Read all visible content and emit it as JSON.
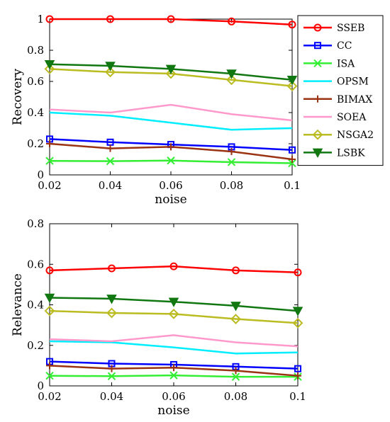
{
  "chart_data": [
    {
      "type": "line",
      "xlabel": "noise",
      "ylabel": "Recovery",
      "x": [
        0.02,
        0.04,
        0.06,
        0.08,
        0.1
      ],
      "x_tick_labels": [
        "0.02",
        "0.04",
        "0.06",
        "0.08",
        "0.1"
      ],
      "xlim": [
        0.02,
        0.1
      ],
      "ylim": [
        0,
        1
      ],
      "y_ticks": [
        0,
        0.2,
        0.4,
        0.6,
        0.8,
        1
      ],
      "y_tick_labels": [
        "0",
        "0.2",
        "0.4",
        "0.6",
        "0.8",
        "1"
      ],
      "grid": false,
      "legend": "outside-right",
      "series": [
        {
          "name": "SSEB",
          "color": "#ff0000",
          "marker": "circle",
          "values": [
            1.0,
            1.0,
            1.0,
            0.985,
            0.965
          ]
        },
        {
          "name": "CC",
          "color": "#0000ff",
          "marker": "square",
          "values": [
            0.23,
            0.21,
            0.195,
            0.18,
            0.16
          ]
        },
        {
          "name": "ISA",
          "color": "#33ee33",
          "marker": "x",
          "values": [
            0.09,
            0.088,
            0.092,
            0.082,
            0.075
          ]
        },
        {
          "name": "OPSM",
          "color": "#00eeff",
          "marker": "none",
          "values": [
            0.4,
            0.38,
            0.335,
            0.29,
            0.3
          ]
        },
        {
          "name": "BIMAX",
          "color": "#993311",
          "marker": "plus",
          "values": [
            0.2,
            0.17,
            0.18,
            0.15,
            0.1
          ]
        },
        {
          "name": "SOEA",
          "color": "#ff99cc",
          "marker": "none",
          "values": [
            0.42,
            0.4,
            0.45,
            0.39,
            0.35
          ]
        },
        {
          "name": "NSGA2",
          "color": "#bbbb22",
          "marker": "diamond",
          "values": [
            0.68,
            0.66,
            0.65,
            0.61,
            0.57
          ]
        },
        {
          "name": "LSBK",
          "color": "#117711",
          "marker": "triangle",
          "values": [
            0.71,
            0.7,
            0.68,
            0.65,
            0.61
          ]
        }
      ]
    },
    {
      "type": "line",
      "xlabel": "noise",
      "ylabel": "Relevance",
      "x": [
        0.02,
        0.04,
        0.06,
        0.08,
        0.1
      ],
      "x_tick_labels": [
        "0.02",
        "0.04",
        "0.06",
        "0.08",
        "0.1"
      ],
      "xlim": [
        0.02,
        0.1
      ],
      "ylim": [
        0,
        0.8
      ],
      "y_ticks": [
        0,
        0.2,
        0.4,
        0.6,
        0.8
      ],
      "y_tick_labels": [
        "0",
        "0.2",
        "0.4",
        "0.6",
        "0.8"
      ],
      "grid": false,
      "series": [
        {
          "name": "SSEB",
          "color": "#ff0000",
          "marker": "circle",
          "values": [
            0.57,
            0.58,
            0.59,
            0.57,
            0.56
          ]
        },
        {
          "name": "CC",
          "color": "#0000ff",
          "marker": "square",
          "values": [
            0.12,
            0.11,
            0.105,
            0.095,
            0.085
          ]
        },
        {
          "name": "ISA",
          "color": "#33ee33",
          "marker": "x",
          "values": [
            0.05,
            0.048,
            0.052,
            0.045,
            0.045
          ]
        },
        {
          "name": "OPSM",
          "color": "#00eeff",
          "marker": "none",
          "values": [
            0.22,
            0.215,
            0.19,
            0.16,
            0.165
          ]
        },
        {
          "name": "BIMAX",
          "color": "#993311",
          "marker": "plus",
          "values": [
            0.1,
            0.085,
            0.09,
            0.075,
            0.05
          ]
        },
        {
          "name": "SOEA",
          "color": "#ff99cc",
          "marker": "none",
          "values": [
            0.23,
            0.22,
            0.25,
            0.215,
            0.195
          ]
        },
        {
          "name": "NSGA2",
          "color": "#bbbb22",
          "marker": "diamond",
          "values": [
            0.37,
            0.36,
            0.355,
            0.33,
            0.31
          ]
        },
        {
          "name": "LSBK",
          "color": "#117711",
          "marker": "triangle",
          "values": [
            0.435,
            0.43,
            0.415,
            0.395,
            0.37
          ]
        }
      ]
    }
  ]
}
